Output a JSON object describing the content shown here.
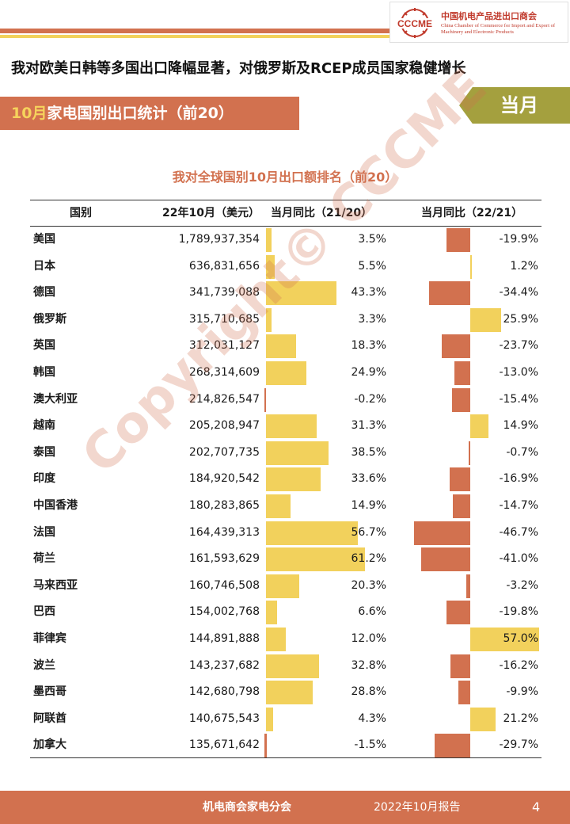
{
  "header": {
    "logo_cn": "中国机电产品进出口商会",
    "logo_en": "China Chamber of Commerce for Import and Export of Machinery and Electronic Products",
    "logo_mark": "CCCME",
    "headline": "我对欧美日韩等多国出口降幅显著，对俄罗斯及RCEP成员国家稳健增长",
    "section_title_hl": "10月",
    "section_title_rest": "家电国别出口统计（前20）",
    "month_tag": "当月"
  },
  "table": {
    "title": "我对全球国别10月出口额排名（前20）",
    "headers": [
      "国别",
      "22年10月（美元）",
      "当月同比（21/20）",
      "当月同比（22/21）"
    ],
    "rows": [
      {
        "name": "美国",
        "value": "1,789,937,354",
        "y1": 3.5,
        "y1_label": "3.5%",
        "y2": -19.9,
        "y2_label": "-19.9%"
      },
      {
        "name": "日本",
        "value": "636,831,656",
        "y1": 5.5,
        "y1_label": "5.5%",
        "y2": 1.2,
        "y2_label": "1.2%"
      },
      {
        "name": "德国",
        "value": "341,739,088",
        "y1": 43.3,
        "y1_label": "43.3%",
        "y2": -34.4,
        "y2_label": "-34.4%"
      },
      {
        "name": "俄罗斯",
        "value": "315,710,685",
        "y1": 3.3,
        "y1_label": "3.3%",
        "y2": 25.9,
        "y2_label": "25.9%"
      },
      {
        "name": "英国",
        "value": "312,031,127",
        "y1": 18.3,
        "y1_label": "18.3%",
        "y2": -23.7,
        "y2_label": "-23.7%"
      },
      {
        "name": "韩国",
        "value": "268,314,609",
        "y1": 24.9,
        "y1_label": "24.9%",
        "y2": -13.0,
        "y2_label": "-13.0%"
      },
      {
        "name": "澳大利亚",
        "value": "214,826,547",
        "y1": -0.2,
        "y1_label": "-0.2%",
        "y2": -15.4,
        "y2_label": "-15.4%"
      },
      {
        "name": "越南",
        "value": "205,208,947",
        "y1": 31.3,
        "y1_label": "31.3%",
        "y2": 14.9,
        "y2_label": "14.9%"
      },
      {
        "name": "泰国",
        "value": "202,707,735",
        "y1": 38.5,
        "y1_label": "38.5%",
        "y2": -0.7,
        "y2_label": "-0.7%"
      },
      {
        "name": "印度",
        "value": "184,920,542",
        "y1": 33.6,
        "y1_label": "33.6%",
        "y2": -16.9,
        "y2_label": "-16.9%"
      },
      {
        "name": "中国香港",
        "value": "180,283,865",
        "y1": 14.9,
        "y1_label": "14.9%",
        "y2": -14.7,
        "y2_label": "-14.7%"
      },
      {
        "name": "法国",
        "value": "164,439,313",
        "y1": 56.7,
        "y1_label": "56.7%",
        "y2": -46.7,
        "y2_label": "-46.7%"
      },
      {
        "name": "荷兰",
        "value": "161,593,629",
        "y1": 61.2,
        "y1_label": "61.2%",
        "y2": -41.0,
        "y2_label": "-41.0%"
      },
      {
        "name": "马来西亚",
        "value": "160,746,508",
        "y1": 20.3,
        "y1_label": "20.3%",
        "y2": -3.2,
        "y2_label": "-3.2%"
      },
      {
        "name": "巴西",
        "value": "154,002,768",
        "y1": 6.6,
        "y1_label": "6.6%",
        "y2": -19.8,
        "y2_label": "-19.8%"
      },
      {
        "name": "菲律宾",
        "value": "144,891,888",
        "y1": 12.0,
        "y1_label": "12.0%",
        "y2": 57.0,
        "y2_label": "57.0%"
      },
      {
        "name": "波兰",
        "value": "143,237,682",
        "y1": 32.8,
        "y1_label": "32.8%",
        "y2": -16.2,
        "y2_label": "-16.2%"
      },
      {
        "name": "墨西哥",
        "value": "142,680,798",
        "y1": 28.8,
        "y1_label": "28.8%",
        "y2": -9.9,
        "y2_label": "-9.9%"
      },
      {
        "name": "阿联酋",
        "value": "140,675,543",
        "y1": 4.3,
        "y1_label": "4.3%",
        "y2": 21.2,
        "y2_label": "21.2%"
      },
      {
        "name": "加拿大",
        "value": "135,671,642",
        "y1": -1.5,
        "y1_label": "-1.5%",
        "y2": -29.7,
        "y2_label": "-29.7%"
      }
    ]
  },
  "colors": {
    "accent": "#d2714f",
    "positive": "#f2d15c",
    "negative": "#d2714f",
    "tag": "#a4a03e"
  },
  "footer": {
    "org": "机电商会家电分会",
    "report": "2022年10月报告",
    "page": "4"
  },
  "watermark": "Copyright© CCCME"
}
